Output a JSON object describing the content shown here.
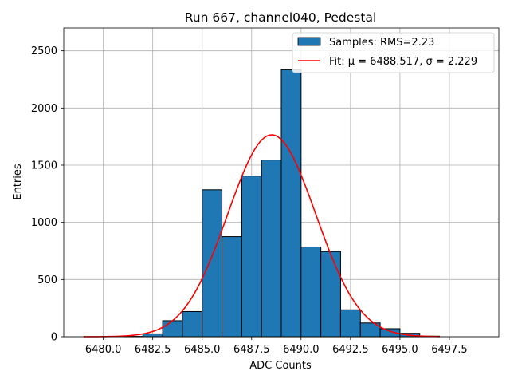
{
  "chart_data": {
    "type": "bar",
    "title": "Run 667, channel040, Pedestal",
    "xlabel": "ADC Counts",
    "ylabel": "Entries",
    "xlim": [
      6478.0,
      6500.0
    ],
    "ylim": [
      0,
      2700
    ],
    "xticks": [
      6480.0,
      6482.5,
      6485.0,
      6487.5,
      6490.0,
      6492.5,
      6495.0,
      6497.5
    ],
    "xtick_labels": [
      "6480.0",
      "6482.5",
      "6485.0",
      "6487.5",
      "6490.0",
      "6492.5",
      "6495.0",
      "6497.5"
    ],
    "yticks": [
      0,
      500,
      1000,
      1500,
      2000,
      2500
    ],
    "ytick_labels": [
      "0",
      "500",
      "1000",
      "1500",
      "2000",
      "2500"
    ],
    "grid": true,
    "legend_position": "top-right",
    "histogram": {
      "name": "Samples: RMS=2.23",
      "color": "#1f77b4",
      "bin_edges": [
        6479,
        6480,
        6481,
        6482,
        6483,
        6484,
        6485,
        6486,
        6487,
        6488,
        6489,
        6490,
        6491,
        6492,
        6493,
        6494,
        6495,
        6496,
        6497,
        6498,
        6499
      ],
      "counts": [
        0,
        0,
        3,
        25,
        140,
        220,
        1285,
        875,
        1405,
        1545,
        2335,
        785,
        745,
        235,
        120,
        70,
        30,
        5,
        0,
        0
      ]
    },
    "fit": {
      "name": "Fit: μ = 6488.517, σ = 2.229",
      "color": "#ff0000",
      "mu": 6488.517,
      "sigma": 2.229,
      "amplitude": 1765,
      "x_range": [
        6479,
        6497
      ]
    }
  }
}
